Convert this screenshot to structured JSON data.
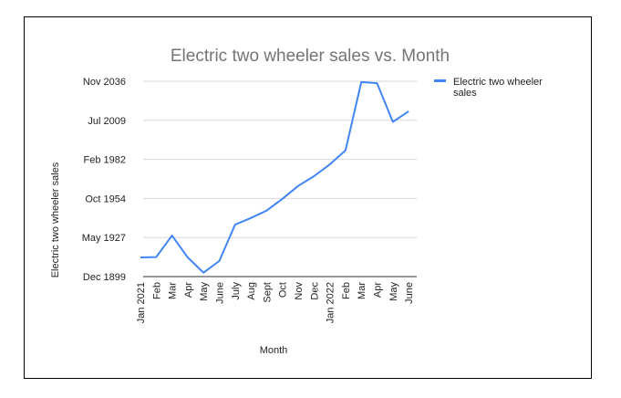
{
  "chart_data": {
    "type": "line",
    "title": "Electric two wheeler sales vs. Month",
    "xlabel": "Month",
    "ylabel": "Electric two wheeler sales",
    "categories": [
      "Jan 2021",
      "Feb",
      "Mar",
      "Apr",
      "May",
      "June",
      "July",
      "Aug",
      "Sept",
      "Oct",
      "Nov",
      "Dec",
      "Jan 2022",
      "Feb",
      "Mar",
      "Apr",
      "May",
      "June"
    ],
    "y_tick_labels": [
      "Dec 1899",
      "May 1927",
      "Oct 1954",
      "Feb 1982",
      "Jul 2009",
      "Nov 2036"
    ],
    "ylim": [
      0,
      50000
    ],
    "series": [
      {
        "name": "Electric two wheeler sales",
        "color": "#4285f4",
        "values": [
          4900,
          5000,
          10500,
          4900,
          1000,
          4000,
          13300,
          15000,
          16900,
          19900,
          23200,
          25700,
          28700,
          32300,
          49800,
          49500,
          39600,
          42300
        ]
      }
    ],
    "grid": true,
    "legend_position": "right"
  }
}
